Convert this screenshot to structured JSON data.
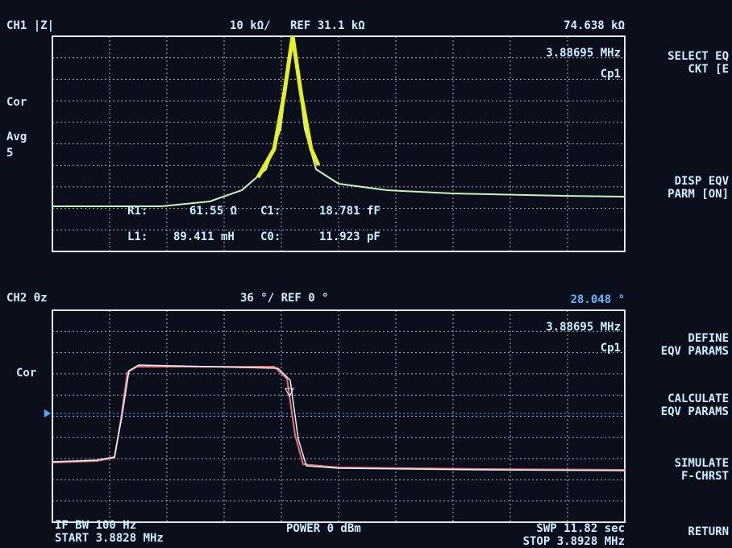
{
  "ch1": {
    "label": "CH1 |Z|",
    "scale": "10 kΩ/",
    "ref": "REF 31.1 kΩ",
    "marker_value": "74.638 kΩ",
    "marker_freq": "3.88695 MHz",
    "model": "Cp1",
    "status": [
      "Cor",
      "Avg",
      "5"
    ],
    "params": [
      "R1:",
      "61.55 Ω",
      "C1:",
      "18.781 fF",
      "L1:",
      "89.411 mH",
      "C0:",
      "11.923 pF"
    ]
  },
  "ch2": {
    "label": "CH2 θz",
    "scale": "36 °/ REF 0 °",
    "marker_value": "28.048 °",
    "marker_freq": "3.88695 MHz",
    "model": "Cp1",
    "status": [
      "Cor"
    ]
  },
  "footer": {
    "if_bw": "IF BW 100 Hz",
    "start": "START  3.8828 MHz",
    "power": "POWER  0 dBm",
    "swp": "SWP  11.82 sec",
    "stop": "STOP  3.8928 MHz"
  },
  "softkeys": [
    [
      "SELECT EQ",
      "CKT [E"
    ],
    [
      "DISP EQV",
      "PARM [ON]"
    ],
    [
      "DEFINE",
      "EQV PARAMS"
    ],
    [
      "CALCULATE",
      "EQV PARAMS"
    ],
    [
      "SIMULATE",
      "F-CHRST"
    ],
    [
      "RETURN"
    ]
  ]
}
